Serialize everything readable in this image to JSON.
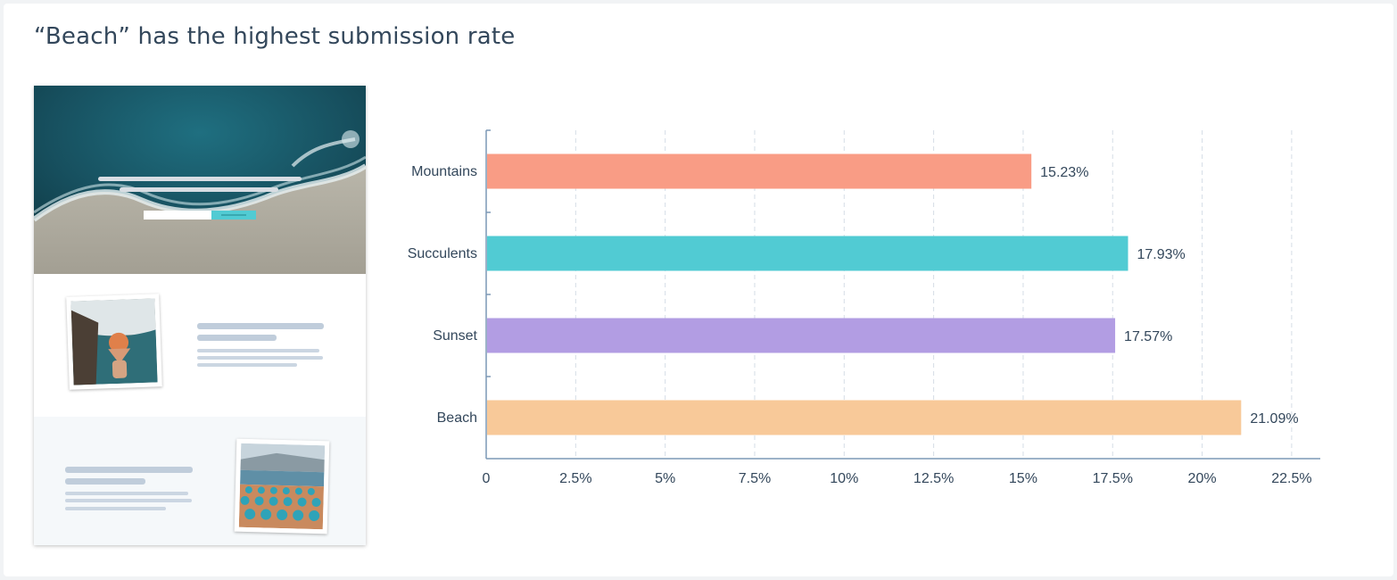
{
  "title": "“Beach” has the highest submission rate",
  "colors": {
    "mountains": "#f99c85",
    "succulents": "#51cbd3",
    "sunset": "#b29de3",
    "beach": "#f8c999",
    "axis": "#7c98b6",
    "grid": "#d5dde6",
    "text": "#33475b"
  },
  "chart_data": {
    "type": "bar",
    "orientation": "horizontal",
    "title": "“Beach” has the highest submission rate",
    "categories": [
      "Mountains",
      "Succulents",
      "Sunset",
      "Beach"
    ],
    "values": [
      15.23,
      17.93,
      17.57,
      21.09
    ],
    "value_labels": [
      "15.23%",
      "17.93%",
      "17.57%",
      "21.09%"
    ],
    "bar_colors": [
      "#f99c85",
      "#51cbd3",
      "#b29de3",
      "#f8c999"
    ],
    "xlim": [
      0,
      23.3
    ],
    "xticks": [
      0,
      2.5,
      5,
      7.5,
      10,
      12.5,
      15,
      17.5,
      20,
      22.5
    ],
    "xtick_labels": [
      "0",
      "2.5%",
      "5%",
      "7.5%",
      "10%",
      "12.5%",
      "15%",
      "17.5%",
      "20%",
      "22.5%"
    ],
    "grid": "vertical-dashed",
    "xlabel": "",
    "ylabel": ""
  }
}
